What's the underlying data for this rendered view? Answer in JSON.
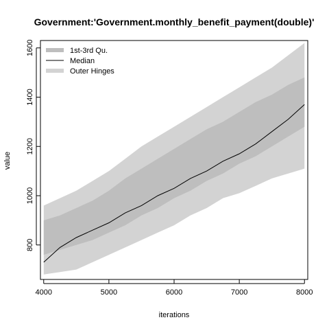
{
  "chart_data": {
    "type": "area",
    "title": "Government:'Government.monthly_benefit_payment(double)'",
    "xlabel": "iterations",
    "ylabel": "value",
    "xlim": [
      3950,
      8050
    ],
    "ylim": [
      660,
      1630
    ],
    "x_ticks": [
      4000,
      5000,
      6000,
      7000,
      8000
    ],
    "y_ticks": [
      800,
      1000,
      1200,
      1400,
      1600
    ],
    "legend_position": "top-left",
    "legend": [
      {
        "label": "1st-3rd Qu.",
        "color": "#bebebe",
        "style": "thick-line"
      },
      {
        "label": "Median",
        "color": "#000000",
        "style": "line"
      },
      {
        "label": "Outer Hinges",
        "color": "#d3d3d3",
        "style": "thick-line"
      }
    ],
    "series": [
      {
        "name": "Median",
        "x": [
          4000,
          4250,
          4500,
          4750,
          5000,
          5250,
          5500,
          5750,
          6000,
          6250,
          6500,
          6750,
          7000,
          7250,
          7500,
          7750,
          8000
        ],
        "values": [
          730,
          790,
          830,
          860,
          890,
          930,
          960,
          1000,
          1030,
          1070,
          1100,
          1140,
          1170,
          1210,
          1260,
          1310,
          1370
        ]
      },
      {
        "name": "1st-3rd Qu.",
        "x": [
          4000,
          4250,
          4500,
          4750,
          5000,
          5250,
          5500,
          5750,
          6000,
          6250,
          6500,
          6750,
          7000,
          7250,
          7500,
          7750,
          8000
        ],
        "lower": [
          760,
          780,
          800,
          820,
          850,
          880,
          920,
          950,
          990,
          1020,
          1060,
          1090,
          1130,
          1160,
          1200,
          1240,
          1280
        ],
        "upper": [
          900,
          920,
          950,
          980,
          1020,
          1070,
          1110,
          1150,
          1190,
          1230,
          1270,
          1300,
          1340,
          1380,
          1410,
          1450,
          1480
        ]
      },
      {
        "name": "Outer Hinges",
        "x": [
          4000,
          4250,
          4500,
          4750,
          5000,
          5250,
          5500,
          5750,
          6000,
          6250,
          6500,
          6750,
          7000,
          7250,
          7500,
          7750,
          8000
        ],
        "lower": [
          680,
          690,
          700,
          730,
          760,
          790,
          820,
          850,
          880,
          920,
          950,
          990,
          1010,
          1040,
          1070,
          1090,
          1110
        ],
        "upper": [
          960,
          990,
          1020,
          1060,
          1100,
          1150,
          1200,
          1240,
          1280,
          1320,
          1360,
          1400,
          1440,
          1480,
          1520,
          1570,
          1620
        ]
      }
    ]
  }
}
